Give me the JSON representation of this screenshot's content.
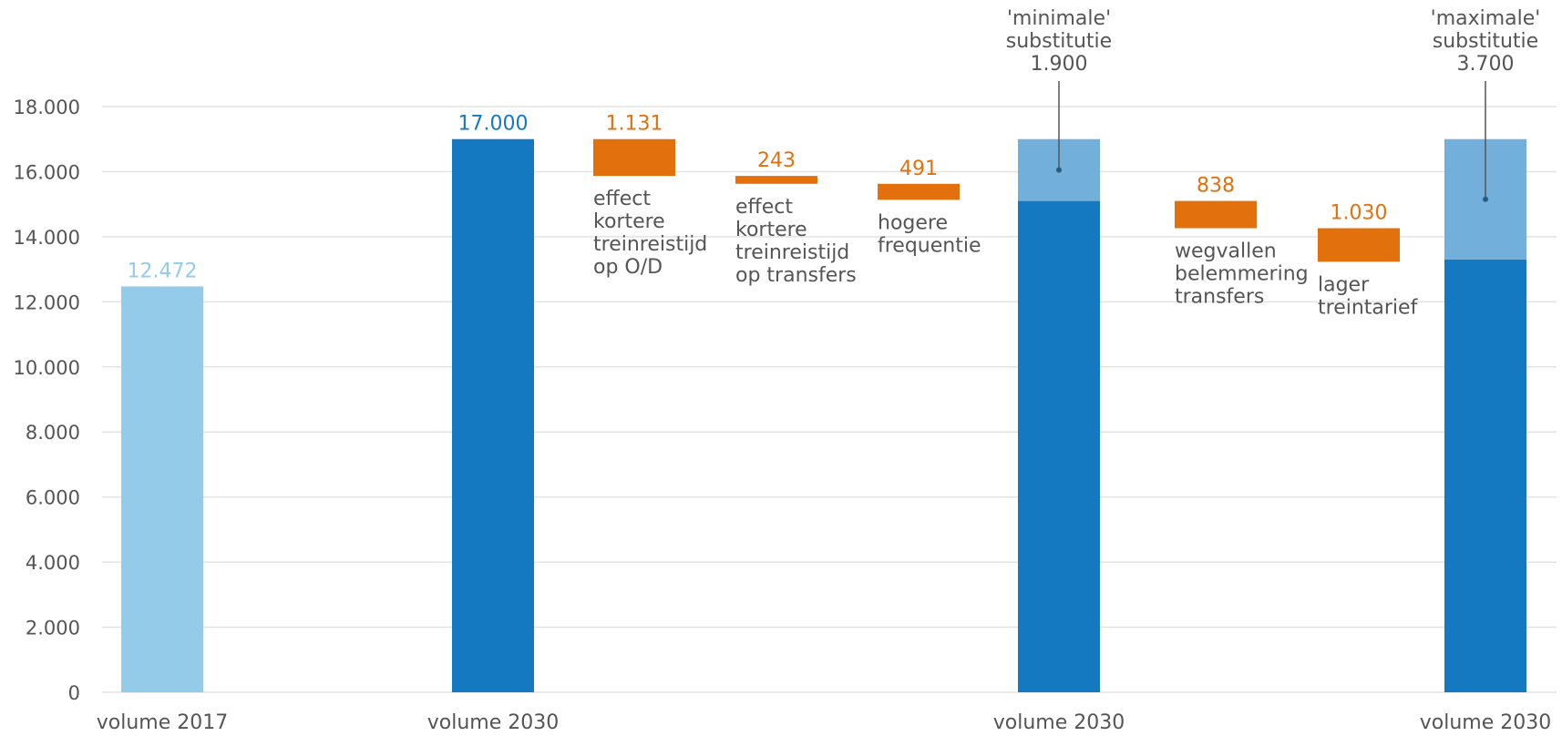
{
  "colors": {
    "light": "#93cbe8",
    "dark": "#1479c0",
    "mid": "#72afdb",
    "orange": "#e2700c",
    "text": "#555555",
    "grid": "#e3e3e3"
  },
  "chart_data": {
    "type": "bar",
    "ylim": [
      0,
      18000
    ],
    "yticks": [
      "0",
      "2.000",
      "4.000",
      "6.000",
      "8.000",
      "10.000",
      "12.000",
      "14.000",
      "16.000",
      "18.000"
    ],
    "ytick_values": [
      0,
      2000,
      4000,
      6000,
      8000,
      10000,
      12000,
      14000,
      16000,
      18000
    ],
    "grid": true,
    "bars": [
      {
        "category": "volume 2017",
        "value": 12472,
        "label": "12.472",
        "color": "light"
      },
      {
        "category": "volume 2030",
        "value": 17000,
        "label": "17.000",
        "color": "dark"
      },
      {
        "category": "",
        "base": 15869,
        "value": 1131,
        "label": "1.131",
        "description": [
          "effect",
          "kortere",
          "treinreistijd",
          "op O/D"
        ],
        "color": "orange"
      },
      {
        "category": "",
        "base": 15626,
        "value": 243,
        "label": "243",
        "description": [
          "effect",
          "kortere",
          "treinreistijd",
          "op transfers"
        ],
        "color": "orange"
      },
      {
        "category": "",
        "base": 15135,
        "value": 491,
        "label": "491",
        "description": [
          "hogere",
          "frequentie"
        ],
        "color": "orange"
      },
      {
        "category": "volume 2030",
        "value": 17000,
        "segments": [
          {
            "value": 15100,
            "color": "dark"
          },
          {
            "value": 1900,
            "color": "mid"
          }
        ],
        "annotation": [
          "'minimale'",
          "substitutie",
          "1.900"
        ]
      },
      {
        "category": "",
        "base": 14262,
        "value": 838,
        "label": "838",
        "description": [
          "wegvallen",
          "belemmering",
          "transfers"
        ],
        "color": "orange"
      },
      {
        "category": "",
        "base": 13232,
        "value": 1030,
        "label": "1.030",
        "description": [
          "lager",
          "treintarief"
        ],
        "color": "orange"
      },
      {
        "category": "volume 2030",
        "value": 17000,
        "segments": [
          {
            "value": 13300,
            "color": "dark"
          },
          {
            "value": 3700,
            "color": "mid"
          }
        ],
        "annotation": [
          "'maximale'",
          "substitutie",
          "3.700"
        ]
      }
    ]
  }
}
